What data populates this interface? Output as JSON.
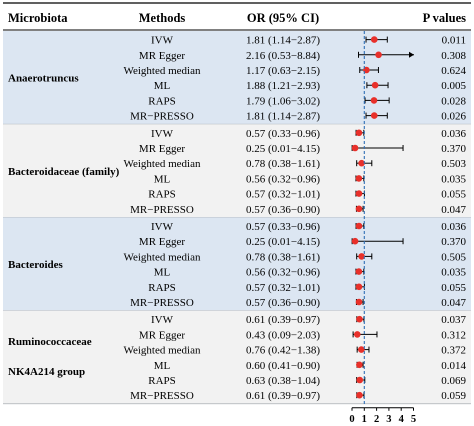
{
  "header": {
    "microbiota": "Microbiota",
    "methods": "Methods",
    "or_ci": "OR (95% CI)",
    "p_values": "P values"
  },
  "colors": {
    "group_blue": "#dce6f2",
    "group_gray": "#f2f2f2",
    "point": "#e8302a",
    "reference_line": "#2f6fb5",
    "text": "#000000"
  },
  "chart_data": {
    "type": "forest",
    "x_axis": {
      "ticks": [
        0,
        1,
        2,
        3,
        4,
        5
      ],
      "xlim": [
        0,
        5
      ],
      "reference_line": 1
    },
    "groups": [
      {
        "name": "Anaerotruncus",
        "shade": "blue",
        "rows": [
          {
            "method": "IVW",
            "or_text": "1.81 (1.14−2.87)",
            "or": 1.81,
            "lo": 1.14,
            "hi": 2.87,
            "p": "0.011"
          },
          {
            "method": "MR Egger",
            "or_text": "2.16 (0.53−8.84)",
            "or": 2.16,
            "lo": 0.53,
            "hi": 8.84,
            "p": "0.308",
            "arrow": true
          },
          {
            "method": "Weighted median",
            "or_text": "1.17 (0.63−2.15)",
            "or": 1.17,
            "lo": 0.63,
            "hi": 2.15,
            "p": "0.624"
          },
          {
            "method": "ML",
            "or_text": "1.88 (1.21−2.93)",
            "or": 1.88,
            "lo": 1.21,
            "hi": 2.93,
            "p": "0.005"
          },
          {
            "method": "RAPS",
            "or_text": "1.79 (1.06−3.02)",
            "or": 1.79,
            "lo": 1.06,
            "hi": 3.02,
            "p": "0.028"
          },
          {
            "method": "MR−PRESSO",
            "or_text": "1.81 (1.14−2.87)",
            "or": 1.81,
            "lo": 1.14,
            "hi": 2.87,
            "p": "0.026"
          }
        ]
      },
      {
        "name": "Bacteroidaceae (family)",
        "shade": "gray",
        "rows": [
          {
            "method": "IVW",
            "or_text": "0.57 (0.33−0.96)",
            "or": 0.57,
            "lo": 0.33,
            "hi": 0.96,
            "p": "0.036"
          },
          {
            "method": "MR Egger",
            "or_text": "0.25 (0.01−4.15)",
            "or": 0.25,
            "lo": 0.01,
            "hi": 4.15,
            "p": "0.370"
          },
          {
            "method": "Weighted median",
            "or_text": "0.78 (0.38−1.61)",
            "or": 0.78,
            "lo": 0.38,
            "hi": 1.61,
            "p": "0.503"
          },
          {
            "method": "ML",
            "or_text": "0.56 (0.32−0.96)",
            "or": 0.56,
            "lo": 0.32,
            "hi": 0.96,
            "p": "0.035"
          },
          {
            "method": "RAPS",
            "or_text": "0.57 (0.32−1.01)",
            "or": 0.57,
            "lo": 0.32,
            "hi": 1.01,
            "p": "0.055"
          },
          {
            "method": "MR−PRESSO",
            "or_text": "0.57 (0.36−0.90)",
            "or": 0.57,
            "lo": 0.36,
            "hi": 0.9,
            "p": "0.047"
          }
        ]
      },
      {
        "name": "Bacteroides",
        "shade": "blue",
        "rows": [
          {
            "method": "IVW",
            "or_text": "0.57 (0.33−0.96)",
            "or": 0.57,
            "lo": 0.33,
            "hi": 0.96,
            "p": "0.036"
          },
          {
            "method": "MR Egger",
            "or_text": "0.25 (0.01−4.15)",
            "or": 0.25,
            "lo": 0.01,
            "hi": 4.15,
            "p": "0.370"
          },
          {
            "method": "Weighted median",
            "or_text": "0.78 (0.38−1.61)",
            "or": 0.78,
            "lo": 0.38,
            "hi": 1.61,
            "p": "0.505"
          },
          {
            "method": "ML",
            "or_text": "0.56 (0.32−0.96)",
            "or": 0.56,
            "lo": 0.32,
            "hi": 0.96,
            "p": "0.035"
          },
          {
            "method": "RAPS",
            "or_text": "0.57 (0.32−1.01)",
            "or": 0.57,
            "lo": 0.32,
            "hi": 1.01,
            "p": "0.055"
          },
          {
            "method": "MR−PRESSO",
            "or_text": "0.57 (0.36−0.90)",
            "or": 0.57,
            "lo": 0.36,
            "hi": 0.9,
            "p": "0.047"
          }
        ]
      },
      {
        "name": "Ruminococcaceae NK4A214 group",
        "name_lines": [
          "Ruminococcaceae",
          "NK4A214 group"
        ],
        "shade": "gray",
        "rows": [
          {
            "method": "IVW",
            "or_text": "0.61 (0.39−0.97)",
            "or": 0.61,
            "lo": 0.39,
            "hi": 0.97,
            "p": "0.037"
          },
          {
            "method": "MR Egger",
            "or_text": "0.43 (0.09−2.03)",
            "or": 0.43,
            "lo": 0.09,
            "hi": 2.03,
            "p": "0.312"
          },
          {
            "method": "Weighted median",
            "or_text": "0.76 (0.42−1.38)",
            "or": 0.76,
            "lo": 0.42,
            "hi": 1.38,
            "p": "0.372"
          },
          {
            "method": "ML",
            "or_text": "0.60 (0.41−0.90)",
            "or": 0.6,
            "lo": 0.41,
            "hi": 0.9,
            "p": "0.014"
          },
          {
            "method": "RAPS",
            "or_text": "0.63 (0.38−1.04)",
            "or": 0.63,
            "lo": 0.38,
            "hi": 1.04,
            "p": "0.069"
          },
          {
            "method": "MR−PRESSO",
            "or_text": "0.61 (0.39−0.97)",
            "or": 0.61,
            "lo": 0.39,
            "hi": 0.97,
            "p": "0.059"
          }
        ]
      }
    ]
  }
}
